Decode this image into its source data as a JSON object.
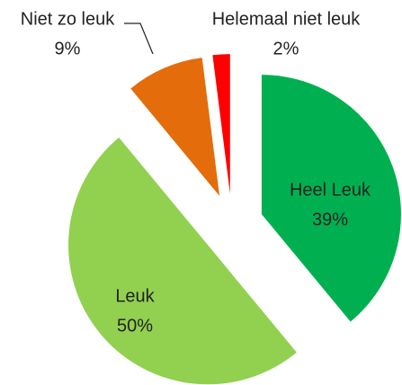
{
  "chart_data": {
    "type": "pie",
    "categories": [
      "Heel Leuk",
      "Leuk",
      "Niet zo leuk",
      "Helemaal niet leuk"
    ],
    "values": [
      39,
      50,
      9,
      2
    ],
    "value_labels": [
      "39%",
      "50%",
      "9%",
      "2%"
    ],
    "colors": [
      "#00b050",
      "#92d050",
      "#e46c0a",
      "#ff0000"
    ]
  }
}
